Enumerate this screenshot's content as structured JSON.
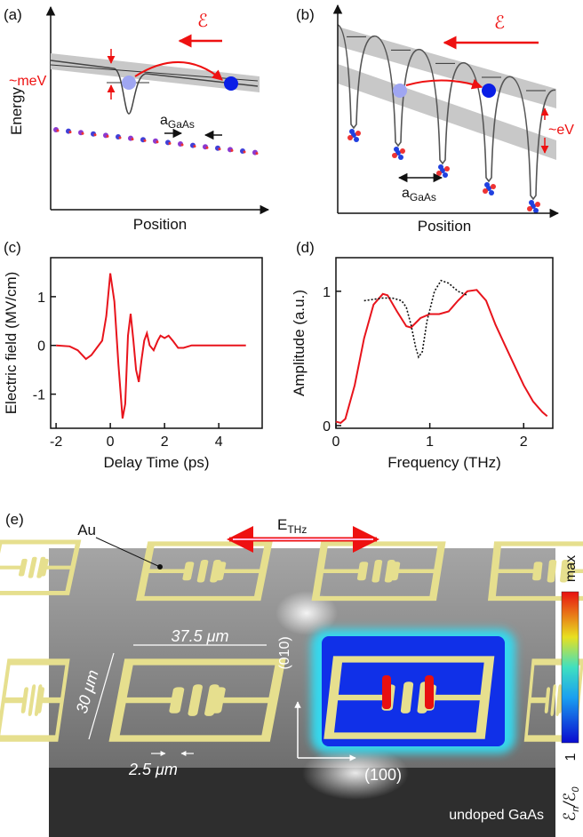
{
  "panel_a": {
    "label": "(a)",
    "y_label": "Energy",
    "x_label": "Position",
    "field_symbol": "ℰ",
    "energy_label": "~meV",
    "lattice_label": "a",
    "lattice_sub": "GaAs"
  },
  "panel_b": {
    "label": "(b)",
    "x_label": "Position",
    "field_symbol": "ℰ",
    "energy_label": "~eV",
    "lattice_label": "a",
    "lattice_sub": "GaAs"
  },
  "chart_data": [
    {
      "type": "line",
      "panel_label": "(c)",
      "x_label": "Delay Time (ps)",
      "y_label": "Electric field (MV/cm)",
      "xlim": [
        -2.2,
        5.6
      ],
      "ylim": [
        -1.7,
        1.8
      ],
      "xticks": [
        -2,
        0,
        2,
        4
      ],
      "yticks": [
        -1,
        0,
        1
      ],
      "series": [
        {
          "color": "#e8141c",
          "style": "solid",
          "x": [
            -2,
            -1.5,
            -1.2,
            -0.9,
            -0.7,
            -0.5,
            -0.3,
            -0.15,
            0,
            0.15,
            0.3,
            0.45,
            0.55,
            0.65,
            0.75,
            0.85,
            0.95,
            1.05,
            1.15,
            1.25,
            1.35,
            1.45,
            1.6,
            1.75,
            1.85,
            2.0,
            2.15,
            2.3,
            2.5,
            2.7,
            3,
            4,
            5
          ],
          "values": [
            0,
            -0.02,
            -0.1,
            -0.28,
            -0.2,
            -0.05,
            0.1,
            0.6,
            1.48,
            0.9,
            -0.4,
            -1.5,
            -1.2,
            0.2,
            0.65,
            0.1,
            -0.5,
            -0.75,
            -0.3,
            0.1,
            0.25,
            0,
            -0.1,
            0.1,
            0.2,
            0.15,
            0.2,
            0.1,
            -0.05,
            -0.05,
            0,
            0,
            0
          ]
        }
      ]
    },
    {
      "type": "line",
      "panel_label": "(d)",
      "x_label": "Frequency (THz)",
      "y_label": "Amplitude (a.u.)",
      "xlim": [
        0,
        2.31
      ],
      "ylim": [
        -0.02,
        1.25
      ],
      "xticks": [
        0,
        1,
        2
      ],
      "yticks": [
        0,
        1
      ],
      "series": [
        {
          "color": "#e8141c",
          "style": "solid",
          "x": [
            0,
            0.05,
            0.1,
            0.2,
            0.3,
            0.4,
            0.5,
            0.55,
            0.65,
            0.75,
            0.8,
            0.9,
            1.0,
            1.1,
            1.2,
            1.3,
            1.4,
            1.5,
            1.6,
            1.7,
            1.8,
            1.9,
            2.0,
            2.1,
            2.2,
            2.25
          ],
          "values": [
            0.03,
            0.02,
            0.05,
            0.3,
            0.65,
            0.9,
            0.98,
            0.97,
            0.85,
            0.74,
            0.73,
            0.8,
            0.83,
            0.83,
            0.85,
            0.93,
            1.0,
            1.01,
            0.93,
            0.75,
            0.6,
            0.45,
            0.3,
            0.18,
            0.1,
            0.07
          ]
        },
        {
          "color": "#111111",
          "style": "dotted",
          "x": [
            0.3,
            0.4,
            0.5,
            0.6,
            0.7,
            0.75,
            0.8,
            0.85,
            0.88,
            0.92,
            0.97,
            1.05,
            1.12,
            1.2,
            1.3,
            1.4
          ],
          "values": [
            0.93,
            0.94,
            0.95,
            0.95,
            0.93,
            0.88,
            0.75,
            0.58,
            0.51,
            0.55,
            0.78,
            1.0,
            1.08,
            1.06,
            1.0,
            0.97
          ]
        }
      ]
    }
  ],
  "panel_e": {
    "label": "(e)",
    "material_label": "Au",
    "field_label": "E",
    "field_sub": "THz",
    "width_label": "37.5 μm",
    "height_label": "30 μm",
    "gap_label": "2.5 μm",
    "axis_y_label": "(010)",
    "axis_x_label": "(100)",
    "substrate_label": "undoped GaAs",
    "colorbar_max": "max",
    "colorbar_min": 1,
    "colorbar_label": [
      "ℰ",
      "n",
      "/ℰ",
      "0"
    ]
  }
}
